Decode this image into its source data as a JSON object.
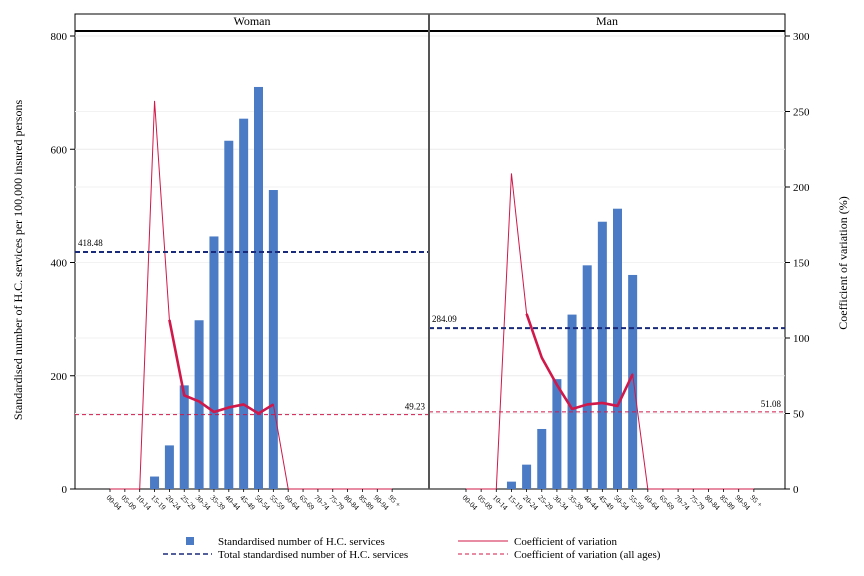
{
  "colors": {
    "bar": "#4a7bc4",
    "total_line": "#1a2a7a",
    "cv_line": "#d0184a",
    "cv_all_line": "#d0184a",
    "label_total": "#1a2a7a",
    "label_cv": "#c0183f"
  },
  "chart_data": {
    "type": "bar",
    "categories": [
      "00-04",
      "05-09",
      "10-14",
      "15-19",
      "20-24",
      "25-29",
      "30-34",
      "35-39",
      "40-44",
      "45-49",
      "50-54",
      "55-59",
      "60-64",
      "65-69",
      "70-74",
      "75-79",
      "80-84",
      "85-89",
      "90-94",
      "95 +"
    ],
    "ylabel": "Standardised number of H.C. services per 100,000 insured persons",
    "y2label": "Coefficient of variation (%)",
    "ylim": [
      0,
      800
    ],
    "y2lim": [
      0,
      300
    ],
    "yticks": [
      0,
      200,
      400,
      600,
      800
    ],
    "y2ticks": [
      0,
      50,
      100,
      150,
      200,
      250,
      300
    ],
    "grid": true,
    "legend_position": "bottom",
    "panels": [
      {
        "title": "Woman",
        "bars": [
          0,
          0,
          0,
          22,
          77,
          183,
          298,
          446,
          615,
          654,
          710,
          528,
          0,
          0,
          0,
          0,
          0,
          0,
          0,
          0
        ],
        "total": 418.48,
        "total_label": "418.48",
        "cv": [
          0,
          0,
          0,
          257,
          112,
          62,
          58,
          51,
          54,
          56,
          50,
          56,
          0,
          0,
          0,
          0,
          0,
          0,
          0,
          0
        ],
        "cv_all": 49.23,
        "cv_all_label": "49.23"
      },
      {
        "title": "Man",
        "bars": [
          0,
          0,
          0,
          13,
          43,
          106,
          194,
          308,
          395,
          472,
          495,
          378,
          0,
          0,
          0,
          0,
          0,
          0,
          0,
          0
        ],
        "total": 284.09,
        "total_label": "284.09",
        "cv": [
          0,
          0,
          0,
          209,
          116,
          87,
          69,
          53,
          56,
          57,
          55,
          76,
          0,
          0,
          0,
          0,
          0,
          0,
          0,
          0
        ],
        "cv_all": 51.08,
        "cv_all_label": "51.08"
      }
    ],
    "legend": [
      {
        "key": "bars",
        "label": "Standardised number of H.C. services"
      },
      {
        "key": "cv",
        "label": "Coefficient of variation"
      },
      {
        "key": "total",
        "label": "Total standardised number of H.C. services"
      },
      {
        "key": "cv_all",
        "label": "Coefficient of variation (all ages)"
      }
    ]
  }
}
